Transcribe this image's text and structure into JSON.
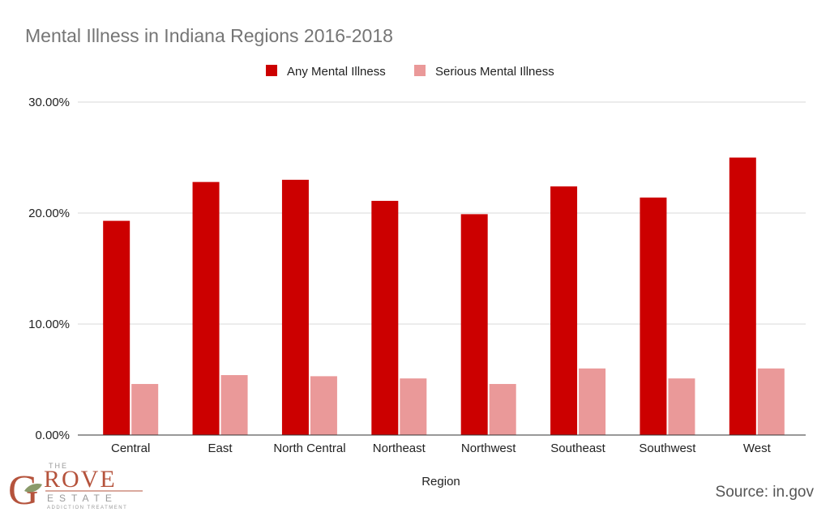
{
  "chart_data": {
    "type": "bar",
    "title": "Mental Illness in Indiana Regions 2016-2018",
    "xlabel": "Region",
    "ylabel": "",
    "categories": [
      "Central",
      "East",
      "North Central",
      "Northeast",
      "Northwest",
      "Southeast",
      "Southwest",
      "West"
    ],
    "series": [
      {
        "name": "Any Mental Illness",
        "color": "#cc0000",
        "values": [
          19.3,
          22.8,
          23.0,
          21.1,
          19.9,
          22.4,
          21.4,
          25.0
        ]
      },
      {
        "name": "Serious Mental Illness",
        "color": "#ea9999",
        "values": [
          4.6,
          5.4,
          5.3,
          5.1,
          4.6,
          6.0,
          5.1,
          6.0
        ]
      }
    ],
    "yticks": [
      "0.00%",
      "10.00%",
      "20.00%",
      "30.00%"
    ],
    "ylim": [
      0,
      30
    ],
    "grid": true,
    "legend_position": "top"
  },
  "source": "Source: in.gov",
  "logo": {
    "the": "THE",
    "g": "G",
    "rove": "ROVE",
    "estate": "ESTATE",
    "tagline": "ADDICTION TREATMENT"
  },
  "colors": {
    "brand": "#b5533c",
    "gridline": "#d9d9d9",
    "axis": "#333333"
  }
}
